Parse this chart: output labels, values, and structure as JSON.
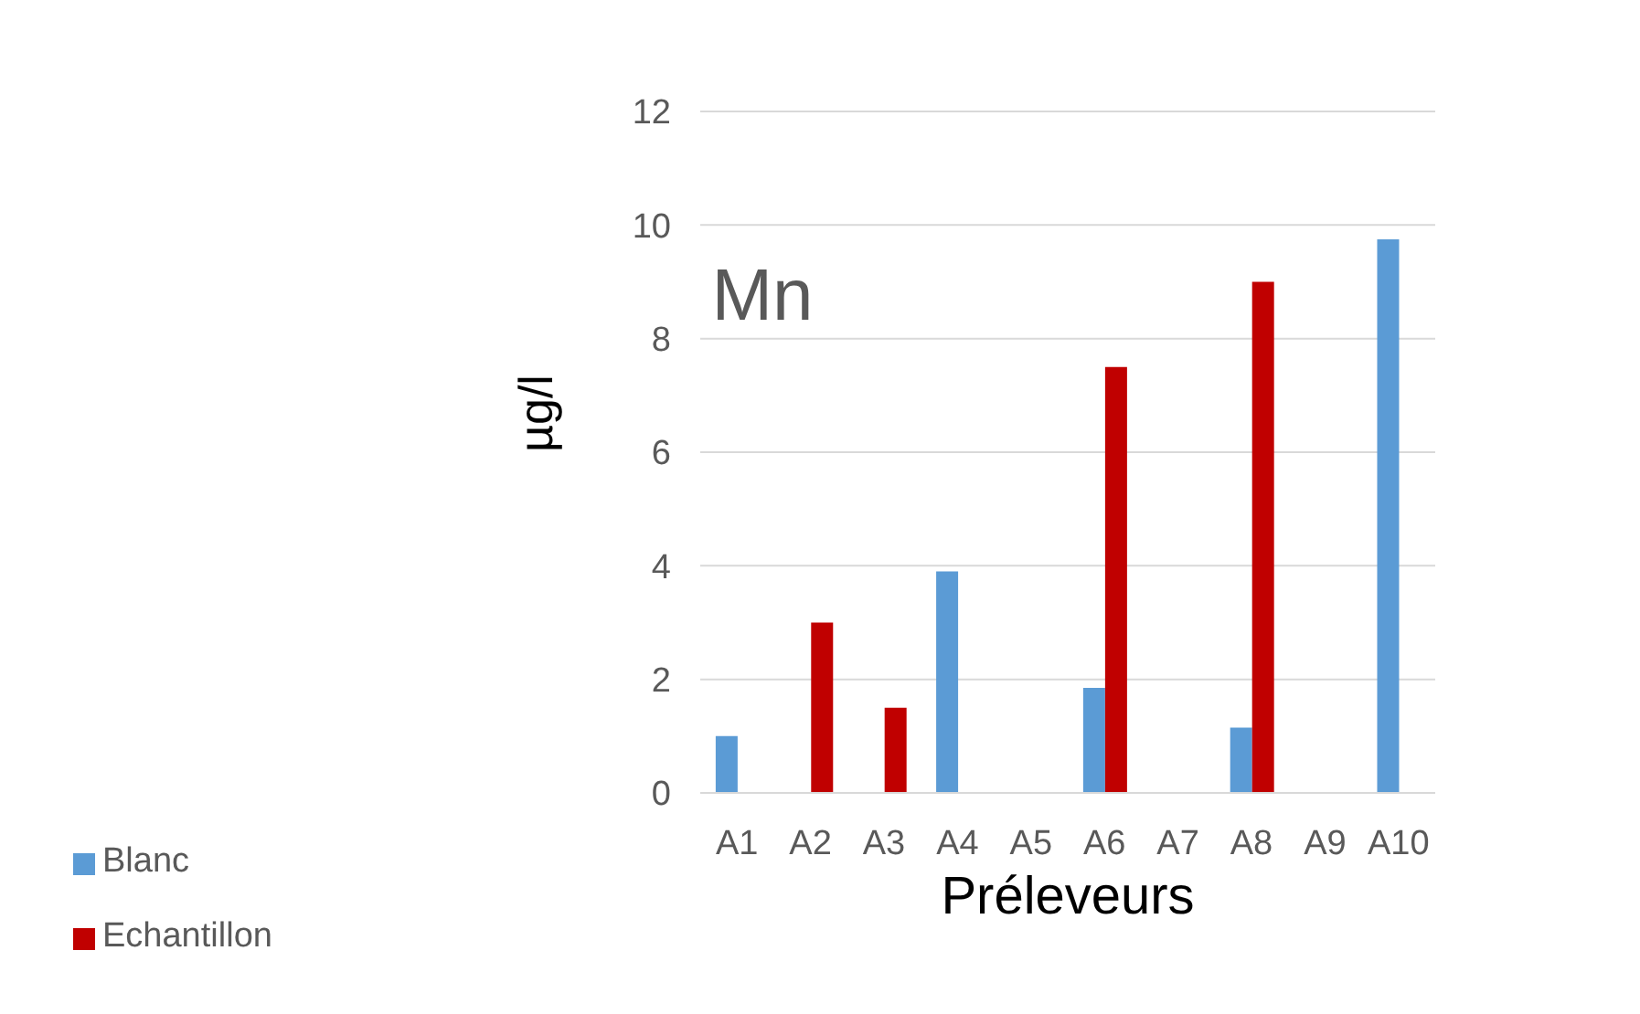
{
  "chart_data": {
    "type": "bar",
    "title": "Mn",
    "xlabel": "Préleveurs",
    "ylabel": "µg/l",
    "categories": [
      "A1",
      "A2",
      "A3",
      "A4",
      "A5",
      "A6",
      "A7",
      "A8",
      "A9",
      "A10"
    ],
    "series": [
      {
        "name": "Blanc",
        "color": "#5b9bd5",
        "values": [
          1.0,
          null,
          null,
          3.9,
          null,
          1.85,
          null,
          1.15,
          null,
          9.75
        ]
      },
      {
        "name": "Echantillon",
        "color": "#c00000",
        "values": [
          null,
          3.0,
          1.5,
          null,
          null,
          7.5,
          null,
          9.0,
          null,
          null
        ]
      }
    ],
    "ylim": [
      0,
      12
    ],
    "yticks": [
      0,
      2,
      4,
      6,
      8,
      10,
      12
    ],
    "grid": "y",
    "legend": "bottom left"
  }
}
